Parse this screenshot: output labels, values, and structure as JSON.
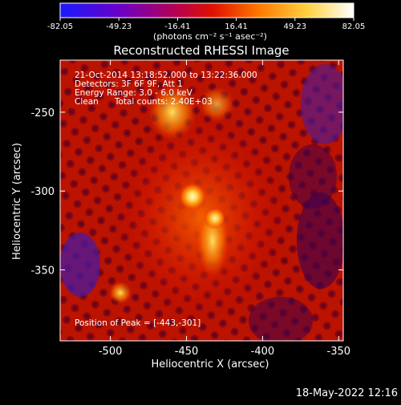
{
  "colorbar": {
    "ticks": [
      "-82.05",
      "-49.23",
      "-16.41",
      "16.41",
      "49.23",
      "82.05"
    ],
    "units": "(photons cm⁻² s⁻¹ asec⁻²)",
    "colors": [
      "#1a1aff",
      "#6a00c8",
      "#b0005a",
      "#e01000",
      "#ff7a00",
      "#ffd040",
      "#ffffff"
    ]
  },
  "title": "Reconstructed RHESSI Image",
  "info_lines": [
    "21-Oct-2014 13:18:52.000 to 13:22:36.000",
    "Detectors: 3F 6F 9F, Att 1",
    "Energy Range: 3.0 - 6.0 keV",
    "Clean      Total counts: 2.40E+03"
  ],
  "peak_text": "Position of Peak = [-443,-301]",
  "xaxis": {
    "label": "Heliocentric X (arcsec)",
    "ticks": [
      "-500",
      "-450",
      "-400",
      "-350"
    ],
    "tick_values": [
      -500,
      -450,
      -400,
      -350
    ],
    "range": [
      -533,
      -347
    ]
  },
  "yaxis": {
    "label": "Heliocentric Y (arcsec)",
    "ticks": [
      "-250",
      "-300",
      "-350"
    ],
    "tick_values": [
      -250,
      -300,
      -350
    ],
    "range": [
      -395,
      -217
    ]
  },
  "timestamp": "18-May-2022 12:16",
  "peak": {
    "x": -443,
    "y": -301
  }
}
